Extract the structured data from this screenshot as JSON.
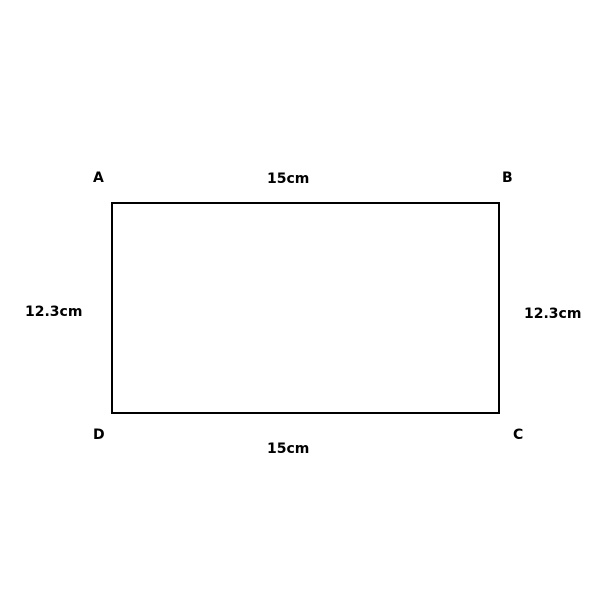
{
  "vertices": {
    "top_left": "A",
    "top_right": "B",
    "bottom_right": "C",
    "bottom_left": "D"
  },
  "side_lengths": {
    "top": "15cm",
    "bottom": "15cm",
    "left": "12.3cm",
    "right": "12.3cm"
  },
  "colors": {
    "background": "#ffffff",
    "stroke": "#000000",
    "text": "#000000"
  }
}
